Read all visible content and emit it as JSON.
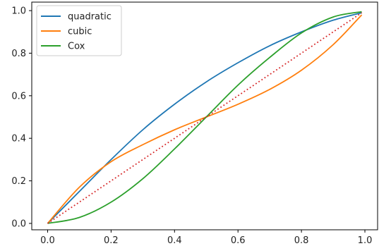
{
  "chart_data": {
    "type": "line",
    "title": "",
    "xlabel": "",
    "ylabel": "",
    "xlim": [
      -0.05,
      1.04
    ],
    "ylim": [
      -0.03,
      1.04
    ],
    "grid": false,
    "legend_position": "top-left",
    "x_ticks": [
      0.0,
      0.2,
      0.4,
      0.6,
      0.8,
      1.0
    ],
    "y_ticks": [
      0.0,
      0.2,
      0.4,
      0.6,
      0.8,
      1.0
    ],
    "x_tick_labels": [
      "0.0",
      "0.2",
      "0.4",
      "0.6",
      "0.8",
      "1.0"
    ],
    "y_tick_labels": [
      "0.0",
      "0.2",
      "0.4",
      "0.6",
      "0.8",
      "1.0"
    ],
    "x": [
      0.0,
      0.1,
      0.2,
      0.3,
      0.4,
      0.5,
      0.6,
      0.7,
      0.8,
      0.9,
      0.99
    ],
    "series": [
      {
        "name": "quadratic",
        "color": "#1f77b4",
        "style": "solid",
        "values": [
          0.0,
          0.15,
          0.3,
          0.44,
          0.56,
          0.665,
          0.755,
          0.835,
          0.9,
          0.955,
          0.99
        ]
      },
      {
        "name": "cubic",
        "color": "#ff7f0e",
        "style": "solid",
        "values": [
          0.0,
          0.17,
          0.29,
          0.37,
          0.44,
          0.5,
          0.56,
          0.63,
          0.72,
          0.84,
          0.98
        ]
      },
      {
        "name": "Cox",
        "color": "#2ca02c",
        "style": "solid",
        "values": [
          0.0,
          0.028,
          0.1,
          0.21,
          0.35,
          0.5,
          0.65,
          0.78,
          0.895,
          0.97,
          0.995
        ]
      },
      {
        "color": "#d62728",
        "style": "dotted",
        "values": [
          0.0,
          0.1,
          0.2,
          0.3,
          0.4,
          0.5,
          0.6,
          0.7,
          0.8,
          0.9,
          0.99
        ]
      }
    ]
  }
}
